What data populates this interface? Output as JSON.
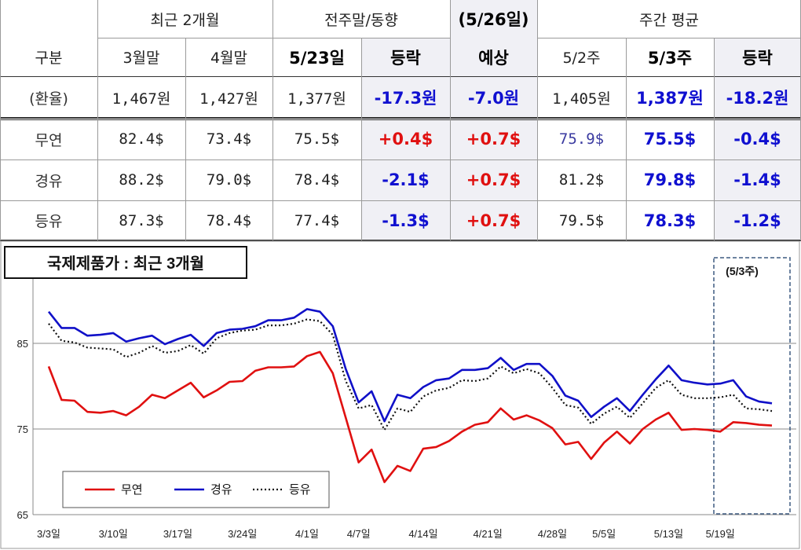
{
  "table": {
    "group_headers": {
      "recent": "최근 2개월",
      "prevweek": "전주말/동향",
      "forecast": "(5/26일)",
      "weekly": "주간 평균"
    },
    "sub_headers": {
      "label": "구분",
      "march": "3월말",
      "april": "4월말",
      "d523": "5/23일",
      "change1": "등락",
      "forecast": "예상",
      "w52": "5/2주",
      "w53": "5/3주",
      "change2": "등락"
    },
    "rows": [
      {
        "label": "(환율)",
        "march": "1,467원",
        "april": "1,427원",
        "d523": "1,377원",
        "change1": "-17.3원",
        "forecast": "-7.0원",
        "w52": "1,405원",
        "w53": "1,387원",
        "change2": "-18.2원"
      },
      {
        "label": "무연",
        "march": "82.4$",
        "april": "73.4$",
        "d523": "75.5$",
        "change1": "+0.4$",
        "forecast": "+0.7$",
        "w52": "75.9$",
        "w53": "75.5$",
        "change2": "-0.4$"
      },
      {
        "label": "경유",
        "march": "88.2$",
        "april": "79.0$",
        "d523": "78.4$",
        "change1": "-2.1$",
        "forecast": "+0.7$",
        "w52": "81.2$",
        "w53": "79.8$",
        "change2": "-1.4$"
      },
      {
        "label": "등유",
        "march": "87.3$",
        "april": "78.4$",
        "d523": "77.4$",
        "change1": "-1.3$",
        "forecast": "+0.7$",
        "w52": "79.5$",
        "w53": "78.3$",
        "change2": "-1.2$"
      }
    ],
    "colors": {
      "negative": "#1010d0",
      "positive": "#e01010",
      "fx_negative": "#0000cc"
    }
  },
  "chart_data": {
    "type": "line",
    "title": "국제제품가 : 최근 3개월",
    "highlight_label": "(5/3주)",
    "ylim": [
      65,
      95
    ],
    "yticks": [
      65,
      75,
      85
    ],
    "x_tick_labels": [
      "3/3일",
      "3/10일",
      "3/17일",
      "3/24일",
      "4/1일",
      "4/7일",
      "4/14일",
      "4/21일",
      "4/28일",
      "5/5일",
      "5/13일",
      "5/19일"
    ],
    "x_tick_index": [
      0,
      5,
      10,
      15,
      20,
      24,
      29,
      34,
      39,
      43,
      48,
      52
    ],
    "n_points": 57,
    "grid": true,
    "legend_position": "bottom-left",
    "series": [
      {
        "name": "무연",
        "color": "#e01010",
        "style": "solid",
        "values": [
          82.3,
          78.4,
          78.3,
          77.0,
          76.9,
          77.1,
          76.6,
          77.6,
          79.0,
          78.6,
          79.5,
          80.4,
          78.7,
          79.5,
          80.5,
          80.6,
          81.8,
          82.2,
          82.2,
          82.3,
          83.5,
          84.0,
          81.5,
          76.3,
          71.1,
          72.6,
          68.8,
          70.7,
          70.1,
          72.7,
          72.9,
          73.6,
          74.7,
          75.5,
          75.8,
          77.4,
          76.1,
          76.6,
          76.0,
          75.1,
          73.2,
          73.5,
          71.5,
          73.4,
          74.7,
          73.3,
          75.0,
          76.1,
          76.9,
          74.9,
          75.0,
          74.9,
          74.7,
          75.8,
          75.7,
          75.5,
          75.4
        ]
      },
      {
        "name": "경유",
        "color": "#1010c8",
        "style": "solid",
        "values": [
          88.7,
          86.8,
          86.8,
          85.9,
          86.0,
          86.2,
          85.2,
          85.6,
          85.9,
          84.9,
          85.5,
          86.0,
          84.7,
          86.2,
          86.6,
          86.7,
          87.0,
          87.7,
          87.7,
          88.0,
          89.0,
          88.7,
          87.0,
          82.0,
          78.1,
          79.4,
          75.9,
          79.0,
          78.6,
          79.9,
          80.7,
          80.9,
          81.9,
          81.9,
          82.1,
          83.3,
          81.9,
          82.6,
          82.6,
          81.2,
          78.9,
          78.3,
          76.4,
          77.6,
          78.6,
          77.1,
          79.0,
          80.8,
          82.4,
          80.7,
          80.4,
          80.2,
          80.3,
          80.7,
          78.8,
          78.2,
          78.0
        ]
      },
      {
        "name": "등유",
        "color": "#111111",
        "style": "dotted",
        "values": [
          87.3,
          85.3,
          85.1,
          84.5,
          84.4,
          84.3,
          83.4,
          83.9,
          84.7,
          83.9,
          84.1,
          84.8,
          83.8,
          85.6,
          86.2,
          86.5,
          86.6,
          87.1,
          87.1,
          87.3,
          87.8,
          87.6,
          86.0,
          80.6,
          77.4,
          77.8,
          74.9,
          77.4,
          77.0,
          78.8,
          79.5,
          79.8,
          80.7,
          80.6,
          80.9,
          82.3,
          81.5,
          82.0,
          81.5,
          79.8,
          77.8,
          77.5,
          75.6,
          76.8,
          77.6,
          76.3,
          78.0,
          79.8,
          80.7,
          79.0,
          78.6,
          78.6,
          78.7,
          79.0,
          77.4,
          77.3,
          77.1
        ]
      }
    ]
  }
}
